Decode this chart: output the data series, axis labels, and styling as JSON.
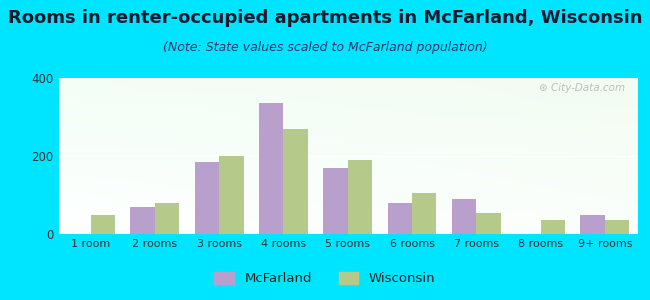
{
  "title": "Rooms in renter-occupied apartments in McFarland, Wisconsin",
  "subtitle": "(Note: State values scaled to McFarland population)",
  "categories": [
    "1 room",
    "2 rooms",
    "3 rooms",
    "4 rooms",
    "5 rooms",
    "6 rooms",
    "7 rooms",
    "8 rooms",
    "9+ rooms"
  ],
  "mcfarland": [
    0,
    70,
    185,
    335,
    170,
    80,
    90,
    0,
    50
  ],
  "wisconsin": [
    50,
    80,
    200,
    270,
    190,
    105,
    55,
    35,
    35
  ],
  "mcfarland_color": "#b89fcc",
  "wisconsin_color": "#b5c98a",
  "background_outer": "#00e5ff",
  "ylim": [
    0,
    400
  ],
  "yticks": [
    0,
    200,
    400
  ],
  "bar_width": 0.38,
  "legend_mcfarland": "McFarland",
  "legend_wisconsin": "Wisconsin",
  "title_fontsize": 13,
  "subtitle_fontsize": 9,
  "watermark": "City-Data.com"
}
